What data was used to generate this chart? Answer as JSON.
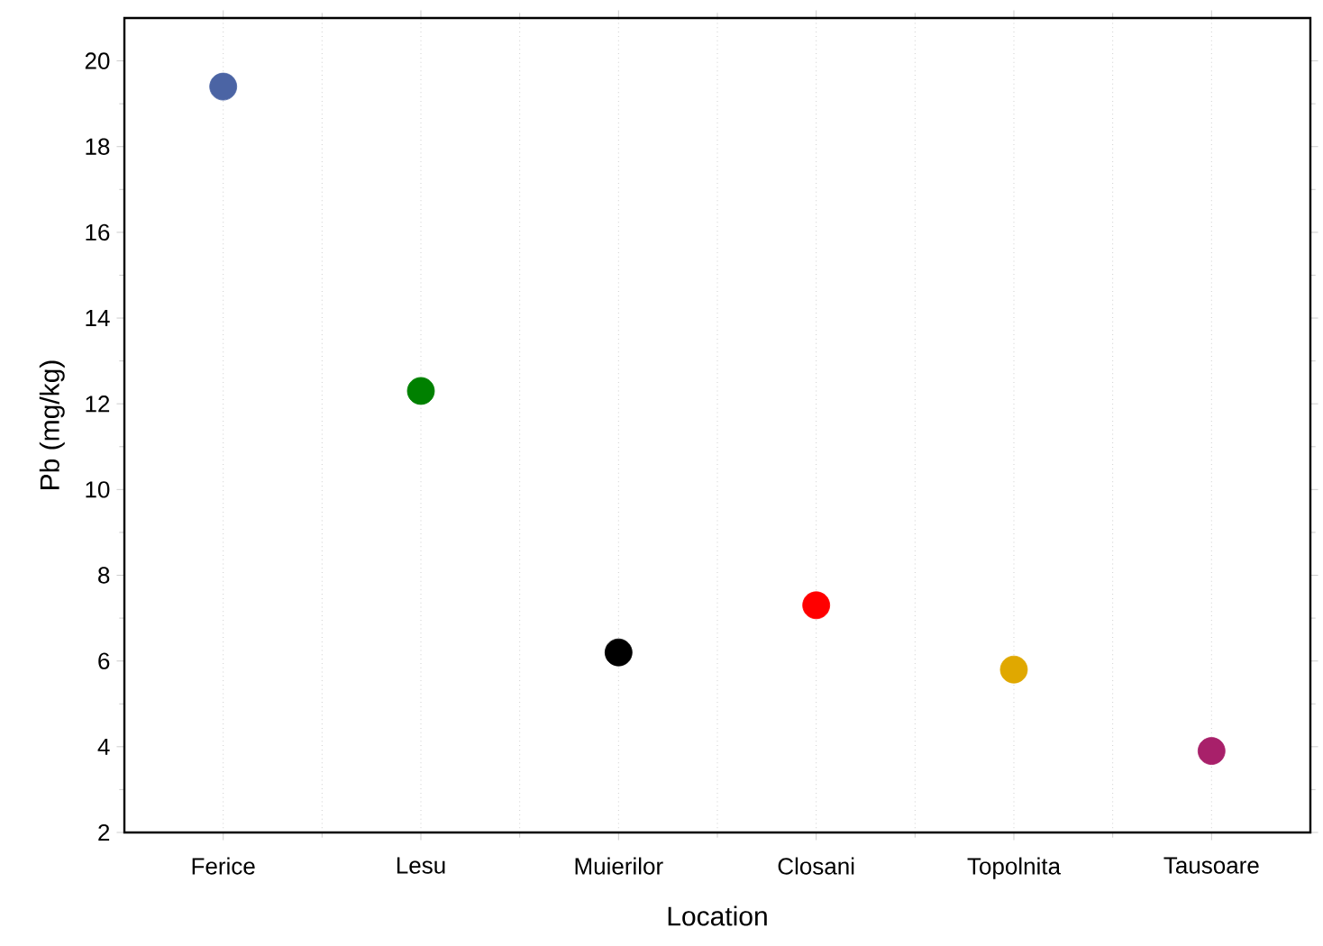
{
  "chart_data": {
    "type": "scatter",
    "xlabel": "Location",
    "ylabel": "Pb (mg/kg)",
    "categories": [
      "Ferice",
      "Lesu",
      "Muierilor",
      "Closani",
      "Topolnita",
      "Tausoare"
    ],
    "values": [
      19.4,
      12.3,
      6.2,
      7.3,
      5.8,
      3.9
    ],
    "colors": [
      "#4b64a4",
      "#008000",
      "#000000",
      "#ff0000",
      "#e0a800",
      "#a8206a"
    ],
    "ylim": [
      2,
      21
    ],
    "yticks": [
      2,
      4,
      6,
      8,
      10,
      12,
      14,
      16,
      18,
      20
    ],
    "grid": "x",
    "marker": "circle"
  }
}
